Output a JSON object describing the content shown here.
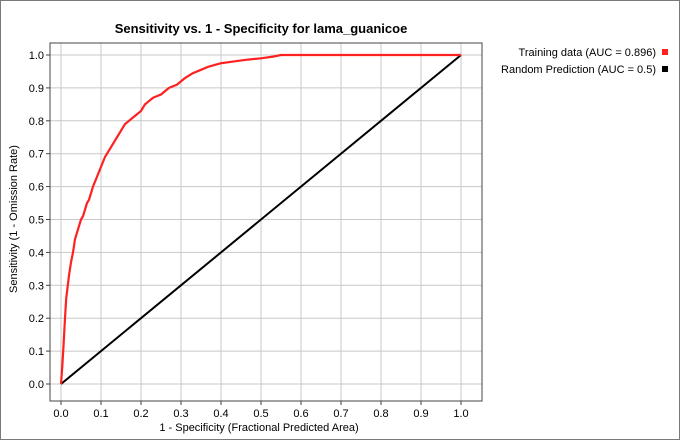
{
  "chart_data": {
    "type": "line",
    "title": "Sensitivity vs. 1 - Specificity for lama_guanicoe",
    "xlabel": "1 - Specificity  (Fractional Predicted Area)",
    "ylabel": "Sensitivity  (1 - Omission Rate)",
    "xlim": [
      0,
      1
    ],
    "ylim": [
      0,
      1
    ],
    "x_ticks": [
      "0.0",
      "0.1",
      "0.2",
      "0.3",
      "0.4",
      "0.5",
      "0.6",
      "0.7",
      "0.8",
      "0.9",
      "1.0"
    ],
    "y_ticks": [
      "0.0",
      "0.1",
      "0.2",
      "0.3",
      "0.4",
      "0.5",
      "0.6",
      "0.7",
      "0.8",
      "0.9",
      "1.0"
    ],
    "grid": true,
    "legend_position": "top-right-outside",
    "series": [
      {
        "name": "Training data (AUC = 0.896)",
        "color": "#ff2020",
        "x": [
          0.0,
          0.003,
          0.006,
          0.01,
          0.013,
          0.017,
          0.02,
          0.025,
          0.03,
          0.035,
          0.04,
          0.045,
          0.05,
          0.055,
          0.06,
          0.065,
          0.07,
          0.075,
          0.08,
          0.09,
          0.1,
          0.11,
          0.12,
          0.13,
          0.14,
          0.15,
          0.16,
          0.17,
          0.18,
          0.19,
          0.2,
          0.21,
          0.22,
          0.23,
          0.25,
          0.27,
          0.29,
          0.31,
          0.33,
          0.35,
          0.37,
          0.4,
          0.43,
          0.46,
          0.5,
          0.53,
          0.55,
          0.6,
          0.7,
          0.8,
          0.9,
          1.0
        ],
        "y": [
          0.0,
          0.05,
          0.11,
          0.2,
          0.26,
          0.3,
          0.33,
          0.37,
          0.4,
          0.44,
          0.46,
          0.48,
          0.5,
          0.51,
          0.53,
          0.55,
          0.56,
          0.58,
          0.6,
          0.63,
          0.66,
          0.69,
          0.71,
          0.73,
          0.75,
          0.77,
          0.79,
          0.8,
          0.81,
          0.82,
          0.83,
          0.85,
          0.86,
          0.87,
          0.88,
          0.9,
          0.91,
          0.93,
          0.945,
          0.955,
          0.965,
          0.975,
          0.98,
          0.985,
          0.99,
          0.995,
          1.0,
          1.0,
          1.0,
          1.0,
          1.0,
          1.0
        ]
      },
      {
        "name": "Random Prediction (AUC = 0.5)",
        "color": "#000000",
        "x": [
          0,
          1
        ],
        "y": [
          0,
          1
        ]
      }
    ]
  }
}
